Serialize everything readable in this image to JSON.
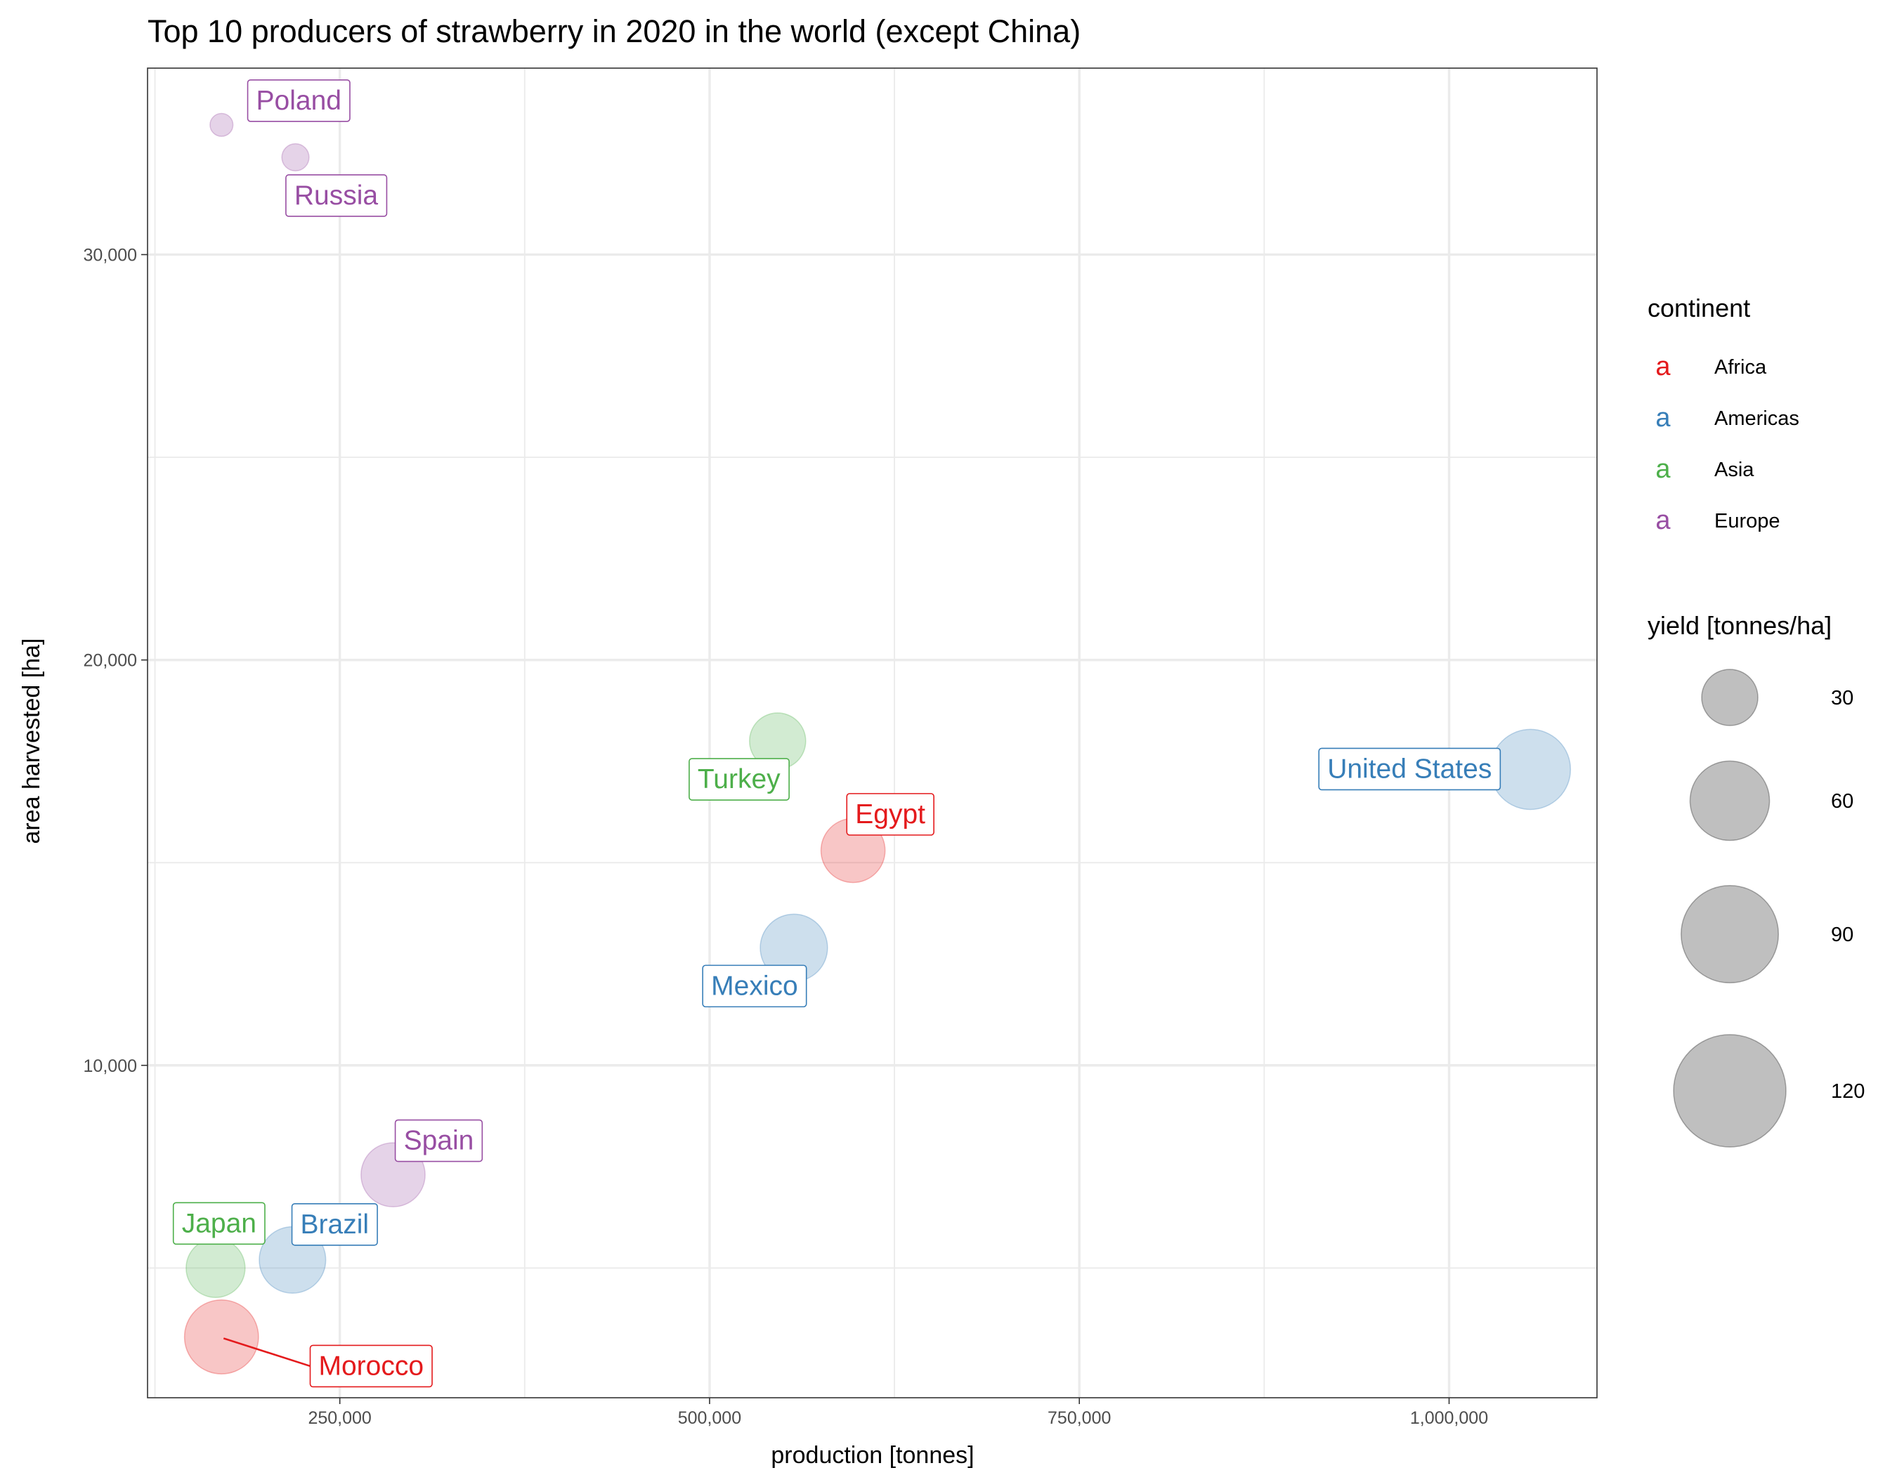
{
  "chart_data": {
    "type": "scatter",
    "title": "Top 10 producers of strawberry in 2020 in the world (except China)",
    "xlabel": "production [tonnes]",
    "ylabel": "area harvested [ha]",
    "xlim": [
      120000,
      1100000
    ],
    "ylim": [
      1800,
      34600
    ],
    "x_ticks": [
      {
        "value": 250000,
        "label": "250,000"
      },
      {
        "value": 500000,
        "label": "500,000"
      },
      {
        "value": 750000,
        "label": "750,000"
      },
      {
        "value": 1000000,
        "label": "1,000,000"
      }
    ],
    "y_ticks": [
      {
        "value": 10000,
        "label": "10,000"
      },
      {
        "value": 20000,
        "label": "20,000"
      },
      {
        "value": 30000,
        "label": "30,000"
      }
    ],
    "grid": true,
    "colors": {
      "Africa": "#e41a1c",
      "Americas": "#377eb8",
      "Asia": "#4daf4a",
      "Europe": "#984ea3"
    },
    "points": [
      {
        "country": "United States",
        "continent": "Americas",
        "production": 1055000,
        "area": 17300,
        "yield": 61
      },
      {
        "country": "Egypt",
        "continent": "Africa",
        "production": 597000,
        "area": 15300,
        "yield": 39
      },
      {
        "country": "Mexico",
        "continent": "Americas",
        "production": 557000,
        "area": 12900,
        "yield": 43
      },
      {
        "country": "Turkey",
        "continent": "Asia",
        "production": 546000,
        "area": 18000,
        "yield": 30
      },
      {
        "country": "Spain",
        "continent": "Europe",
        "production": 286000,
        "area": 7300,
        "yield": 39
      },
      {
        "country": "Russia",
        "continent": "Europe",
        "production": 220000,
        "area": 32400,
        "yield": 7
      },
      {
        "country": "Brazil",
        "continent": "Americas",
        "production": 218000,
        "area": 5200,
        "yield": 42
      },
      {
        "country": "Japan",
        "continent": "Asia",
        "production": 166000,
        "area": 5000,
        "yield": 33
      },
      {
        "country": "Morocco",
        "continent": "Africa",
        "production": 170000,
        "area": 3300,
        "yield": 52
      },
      {
        "country": "Poland",
        "continent": "Europe",
        "production": 170000,
        "area": 33200,
        "yield": 5
      }
    ],
    "legend": {
      "placement": "right",
      "color_title": "continent",
      "color_glyph": "a",
      "color_entries": [
        "Africa",
        "Americas",
        "Asia",
        "Europe"
      ],
      "size_title": "yield [tonnes/ha]",
      "size_entries": [
        {
          "value": 30,
          "label": "30"
        },
        {
          "value": 60,
          "label": "60"
        },
        {
          "value": 90,
          "label": "90"
        },
        {
          "value": 120,
          "label": "120"
        }
      ]
    }
  }
}
